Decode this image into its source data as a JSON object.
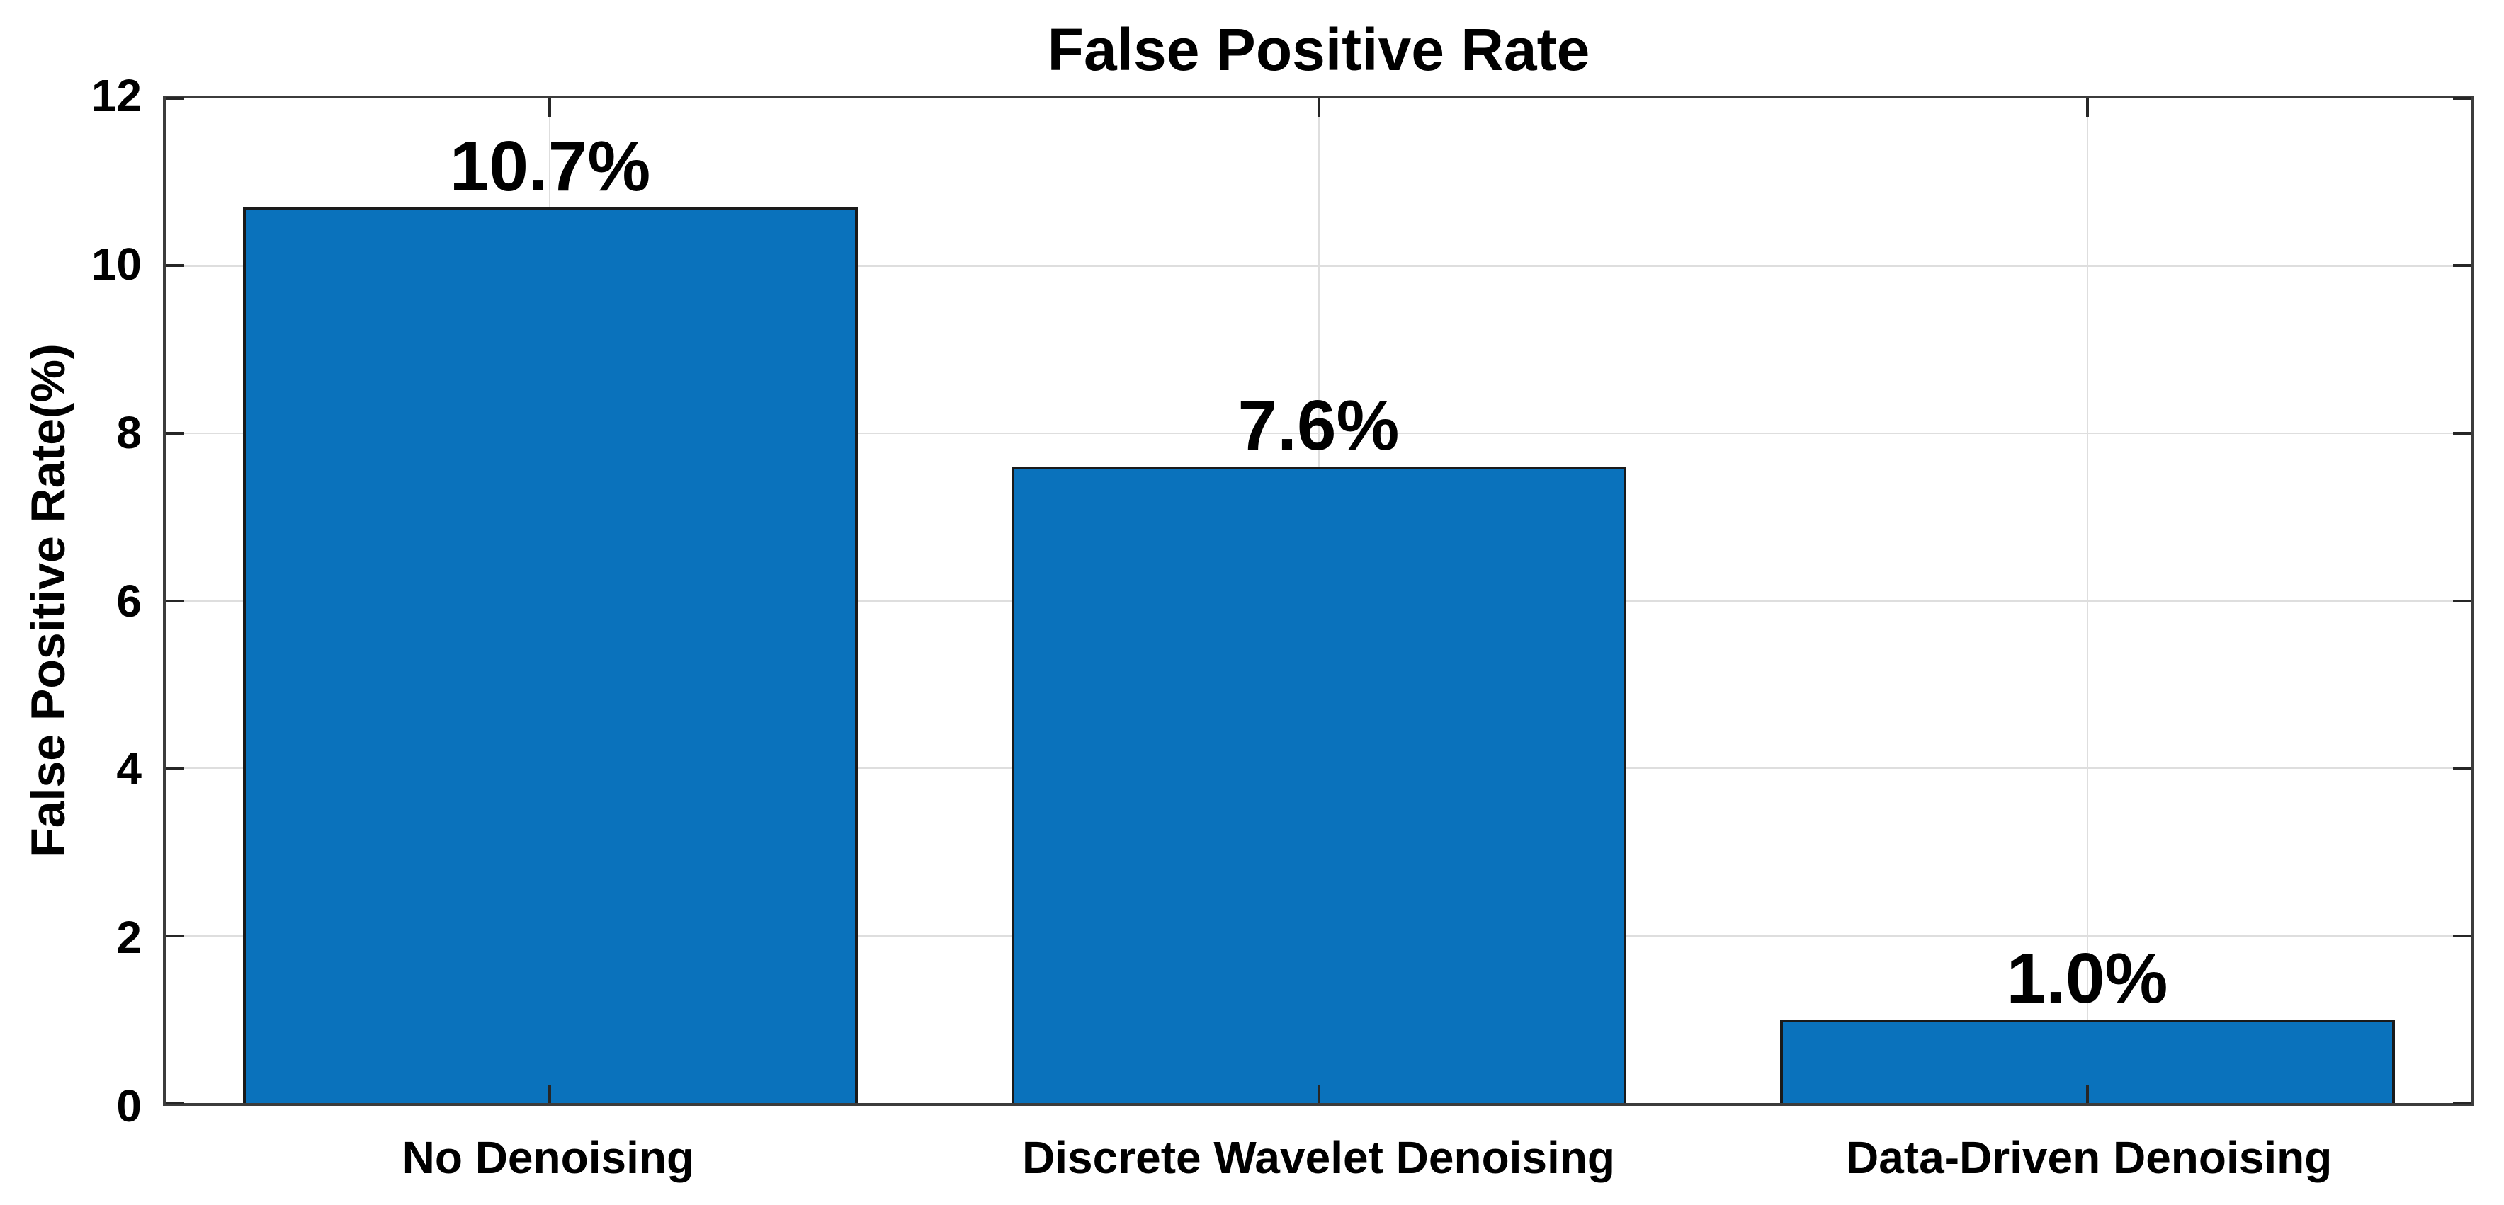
{
  "figure": {
    "background": "#ffffff"
  },
  "chart_data": {
    "type": "bar",
    "title": "False Positive Rate",
    "xlabel": "",
    "ylabel": "False Positive Rate(%)",
    "categories": [
      "No Denoising",
      "Discrete Wavelet Denoising",
      "Data-Driven Denoising"
    ],
    "values": [
      10.7,
      7.6,
      1.0
    ],
    "value_labels": [
      "10.7%",
      "7.6%",
      "1.0%"
    ],
    "ylim": [
      0,
      12
    ],
    "yticks": [
      0,
      2,
      4,
      6,
      8,
      10,
      12
    ],
    "bar_width_fraction": 0.8,
    "grid": "on",
    "legend_position": "none",
    "bar_color": "#0a72bc",
    "bar_edge_color": "#1a1a1a",
    "axis_color": "#3c3c3c",
    "tick_color": "#262626",
    "grid_color": "#dedede",
    "text_color": "#000000"
  }
}
